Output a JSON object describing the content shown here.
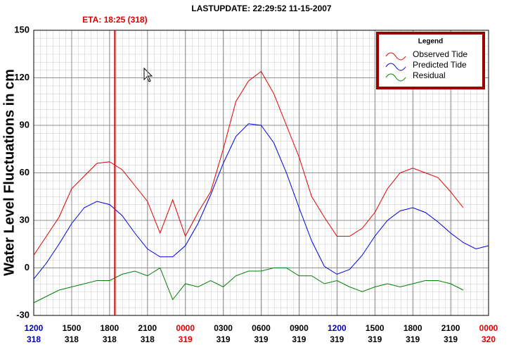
{
  "chart_data": {
    "type": "line",
    "title": "LASTUPDATE: 22:29:52  11-15-2007",
    "y_label": "Water Level Fluctuations in cm",
    "annotation": {
      "text": "ETA: 18:25 (318)",
      "x": 6.42,
      "color": "#e00000"
    },
    "legend": {
      "title": "Legend",
      "position": "upper right",
      "border": "#9b0000"
    },
    "x": [
      0,
      1,
      2,
      3,
      4,
      5,
      6,
      7,
      8,
      9,
      10,
      11,
      12,
      13,
      14,
      15,
      16,
      17,
      18,
      19,
      20,
      21,
      22,
      23,
      24,
      25,
      26,
      27,
      28,
      29,
      30,
      31,
      32,
      33,
      34,
      35,
      36
    ],
    "xlim": [
      0,
      36
    ],
    "xticks": [
      {
        "value": 0,
        "label": "1200",
        "day": "318",
        "color": "#0000c0",
        "day_color": "#0000c0"
      },
      {
        "value": 3,
        "label": "1500",
        "day": "318",
        "color": "#000000",
        "day_color": "#000000"
      },
      {
        "value": 6,
        "label": "1800",
        "day": "318",
        "color": "#000000",
        "day_color": "#000000"
      },
      {
        "value": 9,
        "label": "2100",
        "day": "318",
        "color": "#000000",
        "day_color": "#000000"
      },
      {
        "value": 12,
        "label": "0000",
        "day": "319",
        "color": "#e00000",
        "day_color": "#e00000"
      },
      {
        "value": 15,
        "label": "0300",
        "day": "319",
        "color": "#000000",
        "day_color": "#000000"
      },
      {
        "value": 18,
        "label": "0600",
        "day": "319",
        "color": "#000000",
        "day_color": "#000000"
      },
      {
        "value": 21,
        "label": "0900",
        "day": "319",
        "color": "#000000",
        "day_color": "#000000"
      },
      {
        "value": 24,
        "label": "1200",
        "day": "319",
        "color": "#0000c0",
        "day_color": "#000000"
      },
      {
        "value": 27,
        "label": "1500",
        "day": "319",
        "color": "#000000",
        "day_color": "#000000"
      },
      {
        "value": 30,
        "label": "1800",
        "day": "319",
        "color": "#000000",
        "day_color": "#000000"
      },
      {
        "value": 33,
        "label": "2100",
        "day": "319",
        "color": "#000000",
        "day_color": "#000000"
      },
      {
        "value": 36,
        "label": "0000",
        "day": "320",
        "color": "#e00000",
        "day_color": "#e00000"
      }
    ],
    "ylim": [
      -30,
      150
    ],
    "yticks": [
      -30,
      0,
      30,
      60,
      90,
      120,
      150
    ],
    "grid": true,
    "series": [
      {
        "name": "Observed Tide",
        "color": "#e00000",
        "values": [
          8,
          20,
          32,
          50,
          58,
          66,
          67,
          62,
          52,
          42,
          22,
          43,
          20,
          35,
          48,
          75,
          105,
          118,
          124,
          110,
          90,
          70,
          45,
          32,
          20,
          20,
          25,
          35,
          50,
          60,
          63,
          60,
          57,
          48,
          38,
          null,
          null
        ]
      },
      {
        "name": "Predicted Tide",
        "color": "#0000e0",
        "values": [
          -7,
          3,
          15,
          28,
          38,
          42,
          40,
          33,
          22,
          12,
          7,
          7,
          14,
          28,
          46,
          66,
          83,
          91,
          90,
          79,
          60,
          38,
          17,
          1,
          -4,
          -1,
          8,
          20,
          30,
          36,
          38,
          35,
          29,
          22,
          16,
          12,
          14
        ]
      },
      {
        "name": "Residual",
        "color": "#008000",
        "values": [
          -22,
          -18,
          -14,
          -12,
          -10,
          -8,
          -8,
          -4,
          -2,
          -5,
          0,
          -20,
          -10,
          -12,
          -8,
          -12,
          -5,
          -2,
          -2,
          0,
          0,
          -5,
          -5,
          -10,
          -8,
          -12,
          -15,
          -12,
          -10,
          -12,
          -10,
          -8,
          -8,
          -10,
          -14,
          null,
          null
        ]
      }
    ]
  }
}
